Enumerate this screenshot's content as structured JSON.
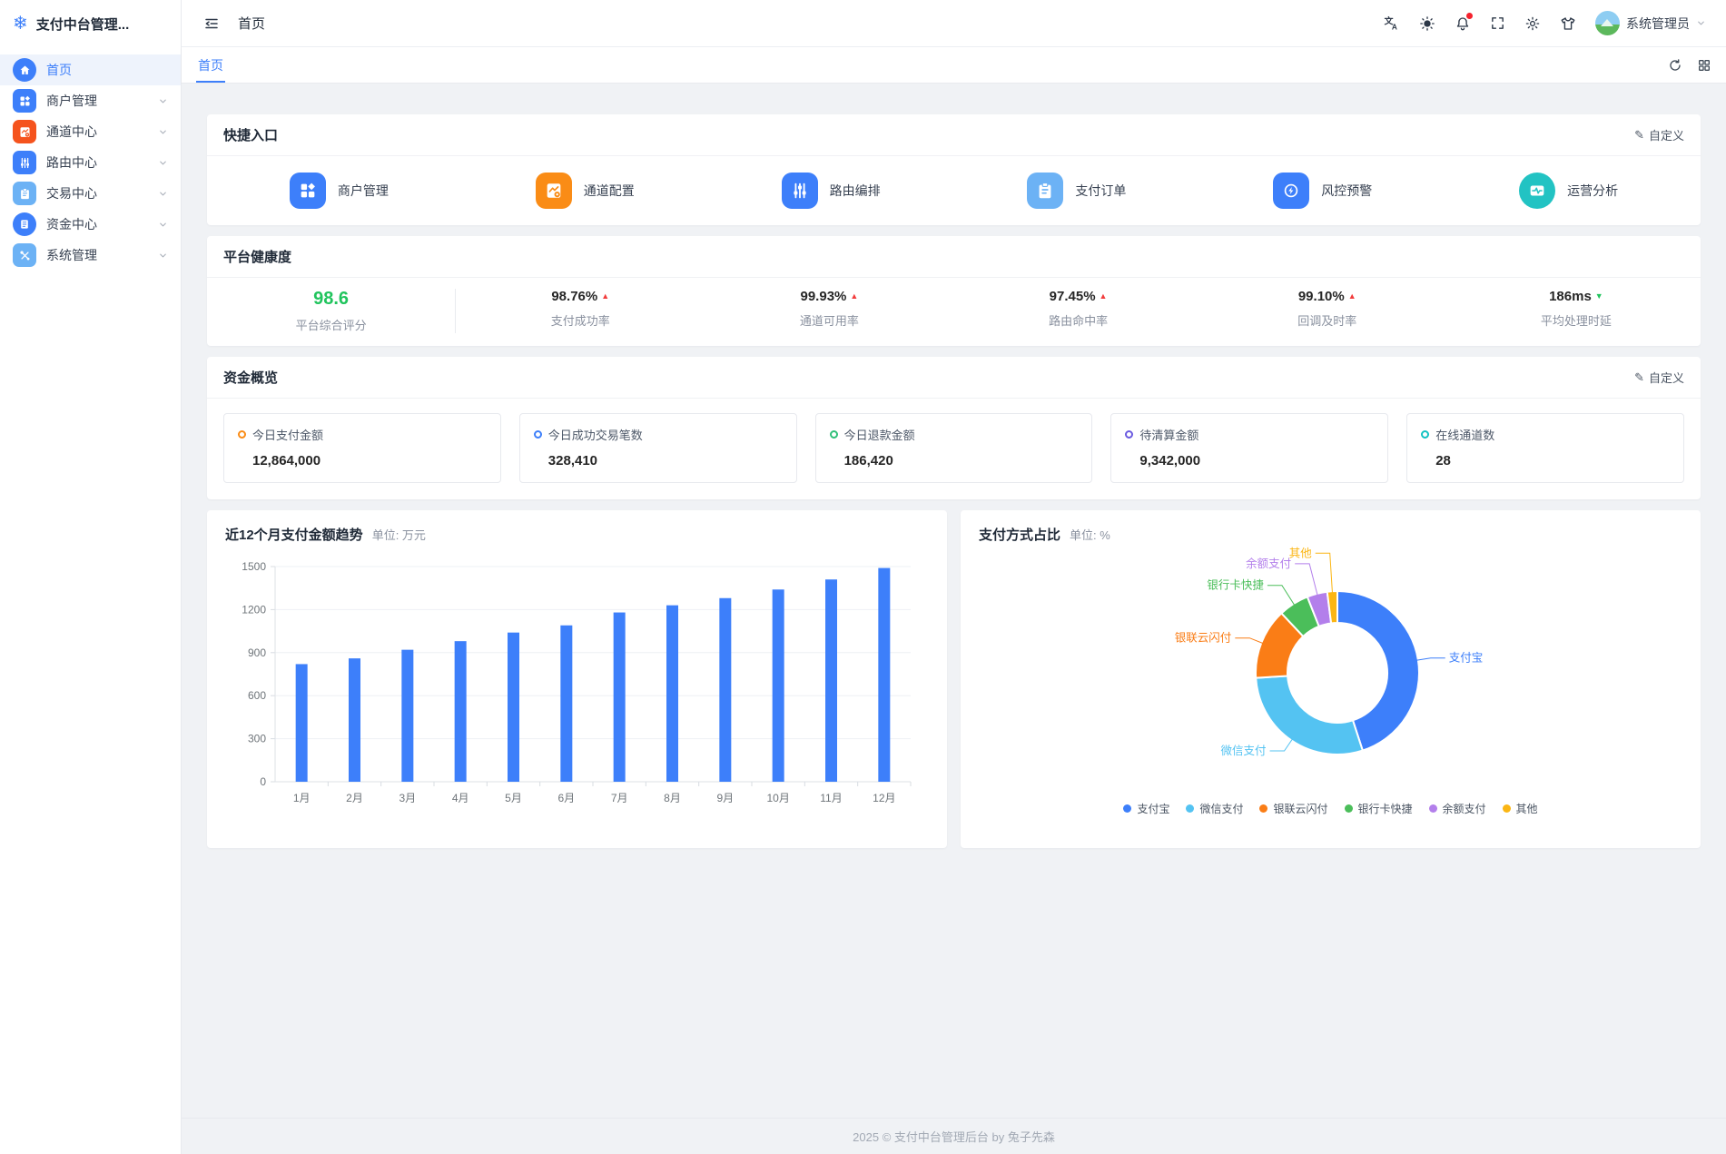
{
  "icons": {
    "logo": "❄",
    "pencil": "✎"
  },
  "app": {
    "title": "支付中台管理...",
    "footer": "2025 © 支付中台管理后台 by 兔子先森"
  },
  "header": {
    "breadcrumb": "首页",
    "user": {
      "name": "系统管理员"
    }
  },
  "sidebar": {
    "items": [
      {
        "label": "首页",
        "icon": "home-icon",
        "color": "#3d7ffa",
        "active": true,
        "has_children": false
      },
      {
        "label": "商户管理",
        "icon": "merchant-icon",
        "color": "#3d7ffa",
        "active": false,
        "has_children": true
      },
      {
        "label": "通道中心",
        "icon": "channel-icon",
        "color": "#f5531d",
        "active": false,
        "has_children": true
      },
      {
        "label": "路由中心",
        "icon": "route-icon",
        "color": "#3d7ffa",
        "active": false,
        "has_children": true
      },
      {
        "label": "交易中心",
        "icon": "trade-icon",
        "color": "#6cb2f5",
        "active": false,
        "has_children": true
      },
      {
        "label": "资金中心",
        "icon": "funds-icon",
        "color": "#3d7ffa",
        "active": false,
        "has_children": true
      },
      {
        "label": "系统管理",
        "icon": "system-icon",
        "color": "#6cb2f5",
        "active": false,
        "has_children": true
      }
    ]
  },
  "tabs": {
    "active": "首页"
  },
  "tab_actions": {
    "refresh": "refresh-icon",
    "layout": "grid-icon"
  },
  "quick_entry": {
    "title": "快捷入口",
    "customize_label": "自定义",
    "items": [
      {
        "label": "商户管理",
        "icon": "merchant-icon",
        "color": "#3d7ffa"
      },
      {
        "label": "通道配置",
        "icon": "channel-config-icon",
        "color": "#fa8c16"
      },
      {
        "label": "路由编排",
        "icon": "route-icon",
        "color": "#3d7ffa"
      },
      {
        "label": "支付订单",
        "icon": "pay-order-icon",
        "color": "#6cb2f5"
      },
      {
        "label": "风控预警",
        "icon": "risk-shield-icon",
        "color": "#3d7ffa"
      },
      {
        "label": "运营分析",
        "icon": "analysis-icon",
        "color": "#22c3c3"
      }
    ]
  },
  "platform_health": {
    "title": "平台健康度",
    "metrics": [
      {
        "value": "98.6",
        "label": "平台综合评分",
        "arrow": "",
        "arrow_color": "",
        "value_color": "#21c45d"
      },
      {
        "value": "98.76%",
        "label": "支付成功率",
        "arrow": "▲",
        "arrow_color": "#f23c3c",
        "value_color": "#262626"
      },
      {
        "value": "99.93%",
        "label": "通道可用率",
        "arrow": "▲",
        "arrow_color": "#f23c3c",
        "value_color": "#262626"
      },
      {
        "value": "97.45%",
        "label": "路由命中率",
        "arrow": "▲",
        "arrow_color": "#f23c3c",
        "value_color": "#262626"
      },
      {
        "value": "99.10%",
        "label": "回调及时率",
        "arrow": "▲",
        "arrow_color": "#f23c3c",
        "value_color": "#262626"
      },
      {
        "value": "186ms",
        "label": "平均处理时延",
        "arrow": "▼",
        "arrow_color": "#21c45d",
        "value_color": "#262626"
      }
    ]
  },
  "funds_overview": {
    "title": "资金概览",
    "customize_label": "自定义",
    "stats": [
      {
        "label": "今日支付金额",
        "value": "12,864,000",
        "color": "#fa8c16"
      },
      {
        "label": "今日成功交易笔数",
        "value": "328,410",
        "color": "#3d7ffa"
      },
      {
        "label": "今日退款金额",
        "value": "186,420",
        "color": "#30bf78"
      },
      {
        "label": "待清算金额",
        "value": "9,342,000",
        "color": "#6a5ae0"
      },
      {
        "label": "在线通道数",
        "value": "28",
        "color": "#13c2c2"
      }
    ]
  },
  "chart_data": [
    {
      "type": "bar",
      "title": "近12个月支付金额趋势",
      "subtitle": "单位: 万元",
      "categories": [
        "1月",
        "2月",
        "3月",
        "4月",
        "5月",
        "6月",
        "7月",
        "8月",
        "9月",
        "10月",
        "11月",
        "12月"
      ],
      "values": [
        820,
        860,
        920,
        980,
        1040,
        1090,
        1180,
        1230,
        1280,
        1340,
        1410,
        1490
      ],
      "ylim": [
        0,
        1500
      ],
      "ytick_step": 300,
      "bar_color": "#3d7ffa",
      "grid": true,
      "xlabel": "",
      "ylabel": "万元"
    },
    {
      "type": "pie",
      "title": "支付方式占比",
      "subtitle": "单位: %",
      "donut": true,
      "inner_radius_ratio": 0.61,
      "legend_position": "bottom",
      "series": [
        {
          "name": "支付宝",
          "value": 45,
          "color": "#3d7ffa"
        },
        {
          "name": "微信支付",
          "value": 29,
          "color": "#54c3f2"
        },
        {
          "name": "银联云闪付",
          "value": 14,
          "color": "#fa7d16"
        },
        {
          "name": "银行卡快捷",
          "value": 6,
          "color": "#4bbe5a"
        },
        {
          "name": "余额支付",
          "value": 4,
          "color": "#b37feb"
        },
        {
          "name": "其他",
          "value": 2,
          "color": "#fbb614"
        }
      ]
    }
  ]
}
